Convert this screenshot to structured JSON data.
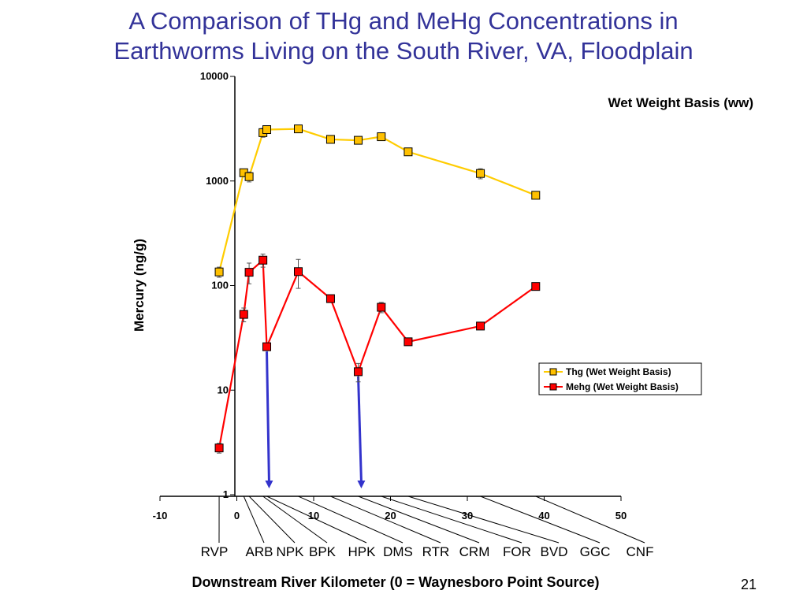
{
  "slide": {
    "title_line1": "A Comparison of THg and MeHg Concentrations in",
    "title_line2": "Earthworms Living on the South River, VA, Floodplain",
    "page_number": "21"
  },
  "colors": {
    "title": "#333399",
    "thg_line": "#FFCC00",
    "thg_marker": "#FFC000",
    "mehg": "#FF0000",
    "arrow": "#3333CC"
  },
  "chart_data": {
    "type": "line",
    "title": "Wet Weight Basis (ww)",
    "xlabel": "Downstream River Kilometer (0 = Waynesboro Point Source)",
    "ylabel": "Mercury (ng/g)",
    "xlim": [
      -10,
      50
    ],
    "ylim": [
      1,
      10000
    ],
    "yscale": "log",
    "xticks": [
      "-10",
      "0",
      "10",
      "20",
      "30",
      "40",
      "50"
    ],
    "yticks": [
      "1",
      "10",
      "100",
      "1000",
      "10000"
    ],
    "legend_position": "right",
    "series": [
      {
        "name": "Thg (Wet Weight Basis)",
        "x": [
          -2.3,
          0.9,
          1.6,
          3.4,
          3.9,
          8.0,
          12.2,
          15.8,
          18.8,
          22.3,
          31.7,
          38.9
        ],
        "y": [
          135,
          1200,
          1100,
          2900,
          3100,
          3150,
          2500,
          2450,
          2650,
          1900,
          1180,
          730
        ],
        "err": [
          15,
          80,
          120,
          280,
          120,
          70,
          180,
          200,
          160,
          130,
          130,
          50
        ]
      },
      {
        "name": "Mehg (Wet Weight Basis)",
        "x": [
          -2.3,
          0.9,
          1.6,
          3.4,
          3.9,
          8.0,
          12.2,
          15.8,
          18.8,
          22.3,
          31.7,
          38.9
        ],
        "y": [
          2.8,
          53,
          134,
          175,
          26,
          136,
          75,
          15,
          62,
          29,
          41,
          98
        ],
        "err": [
          0.3,
          8,
          30,
          25,
          0,
          42,
          5,
          3,
          7,
          0,
          0,
          0
        ]
      }
    ],
    "site_labels": [
      "RVP",
      "ARB",
      "NPK",
      "BPK",
      "HPK",
      "DMS",
      "RTR",
      "CRM",
      "FOR",
      "BVD",
      "GGC",
      "CNF"
    ],
    "arrow_sites_x": [
      4.2,
      16.2
    ]
  }
}
